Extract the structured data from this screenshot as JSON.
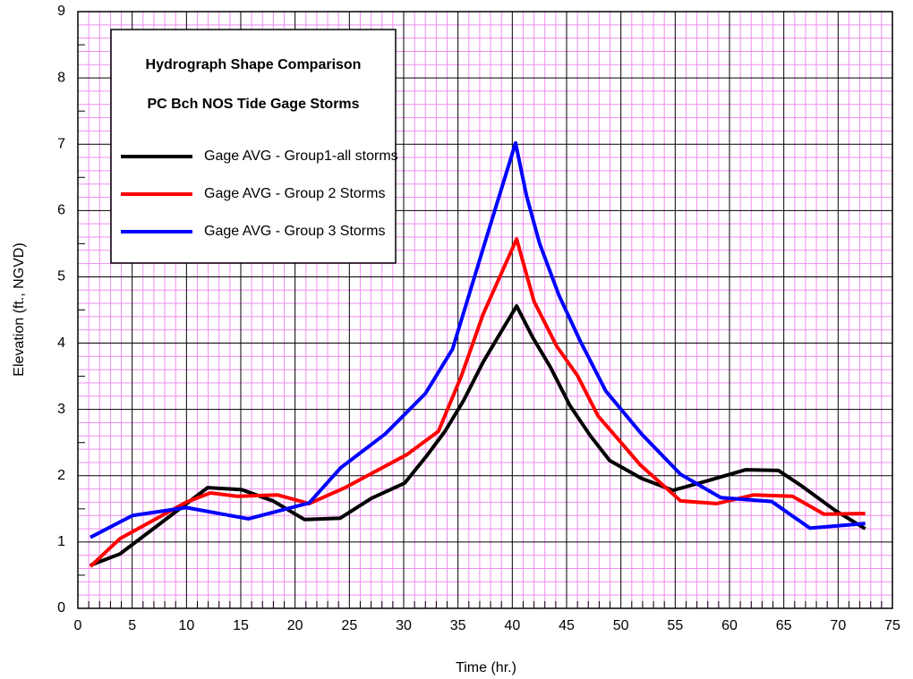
{
  "chart_data": {
    "type": "line",
    "title": [
      "Hydrograph Shape Comparison",
      "PC Bch NOS Tide Gage Storms"
    ],
    "x_label": "Time (hr.)",
    "y_label": "Elevation (ft., NGVD)",
    "xlim": [
      0,
      75
    ],
    "ylim": [
      0,
      9
    ],
    "xticks": [
      0,
      5,
      10,
      15,
      20,
      25,
      30,
      35,
      40,
      45,
      50,
      55,
      60,
      65,
      70,
      75
    ],
    "yticks": [
      0,
      1,
      2,
      3,
      4,
      5,
      6,
      7,
      8,
      9
    ],
    "grid": true,
    "minor_grid": true,
    "legend": "upper left",
    "series": [
      {
        "name": "Gage AVG - Group1-all storms",
        "color": "#000000",
        "x": [
          1.15,
          3.87,
          11.95,
          15.09,
          17.97,
          20.86,
          24.16,
          27.04,
          30.1,
          32.07,
          33.8,
          35.5,
          37.3,
          39.0,
          40.4,
          41.9,
          43.5,
          45.3,
          47.2,
          48.96,
          51.9,
          54.8,
          57.9,
          61.5,
          64.5,
          66.6,
          69.7,
          72.5
        ],
        "values": [
          0.65,
          0.82,
          1.82,
          1.79,
          1.62,
          1.34,
          1.36,
          1.66,
          1.89,
          2.29,
          2.67,
          3.13,
          3.71,
          4.18,
          4.56,
          4.08,
          3.64,
          3.06,
          2.6,
          2.23,
          1.96,
          1.78,
          1.92,
          2.09,
          2.08,
          1.85,
          1.48,
          1.2
        ]
      },
      {
        "name": "Gage AVG - Group 2 Storms",
        "color": "#ff0000",
        "x": [
          1.15,
          3.87,
          9.98,
          12.2,
          14.67,
          18.4,
          21.3,
          24.6,
          30.3,
          33.2,
          35.3,
          37.3,
          40.4,
          42.0,
          44.1,
          46.0,
          47.9,
          49.7,
          51.8,
          55.5,
          58.8,
          62.2,
          65.8,
          68.7,
          72.5
        ],
        "values": [
          0.63,
          1.05,
          1.6,
          1.74,
          1.69,
          1.71,
          1.58,
          1.82,
          2.32,
          2.67,
          3.5,
          4.43,
          5.57,
          4.63,
          3.95,
          3.51,
          2.9,
          2.56,
          2.16,
          1.62,
          1.58,
          1.71,
          1.69,
          1.42,
          1.43
        ]
      },
      {
        "name": "Gage AVG - Group 3 Storms",
        "color": "#0000ff",
        "x": [
          1.15,
          5.03,
          9.98,
          15.7,
          21.3,
          24.2,
          28.3,
          32.0,
          34.5,
          37.3,
          40.3,
          41.3,
          42.5,
          44.3,
          46.2,
          48.6,
          51.9,
          55.5,
          59.2,
          63.9,
          67.4,
          72.5
        ],
        "values": [
          1.07,
          1.4,
          1.52,
          1.35,
          1.59,
          2.12,
          2.63,
          3.24,
          3.91,
          5.42,
          7.02,
          6.23,
          5.51,
          4.72,
          4.05,
          3.28,
          2.63,
          2.02,
          1.67,
          1.61,
          1.21,
          1.28
        ]
      }
    ]
  }
}
